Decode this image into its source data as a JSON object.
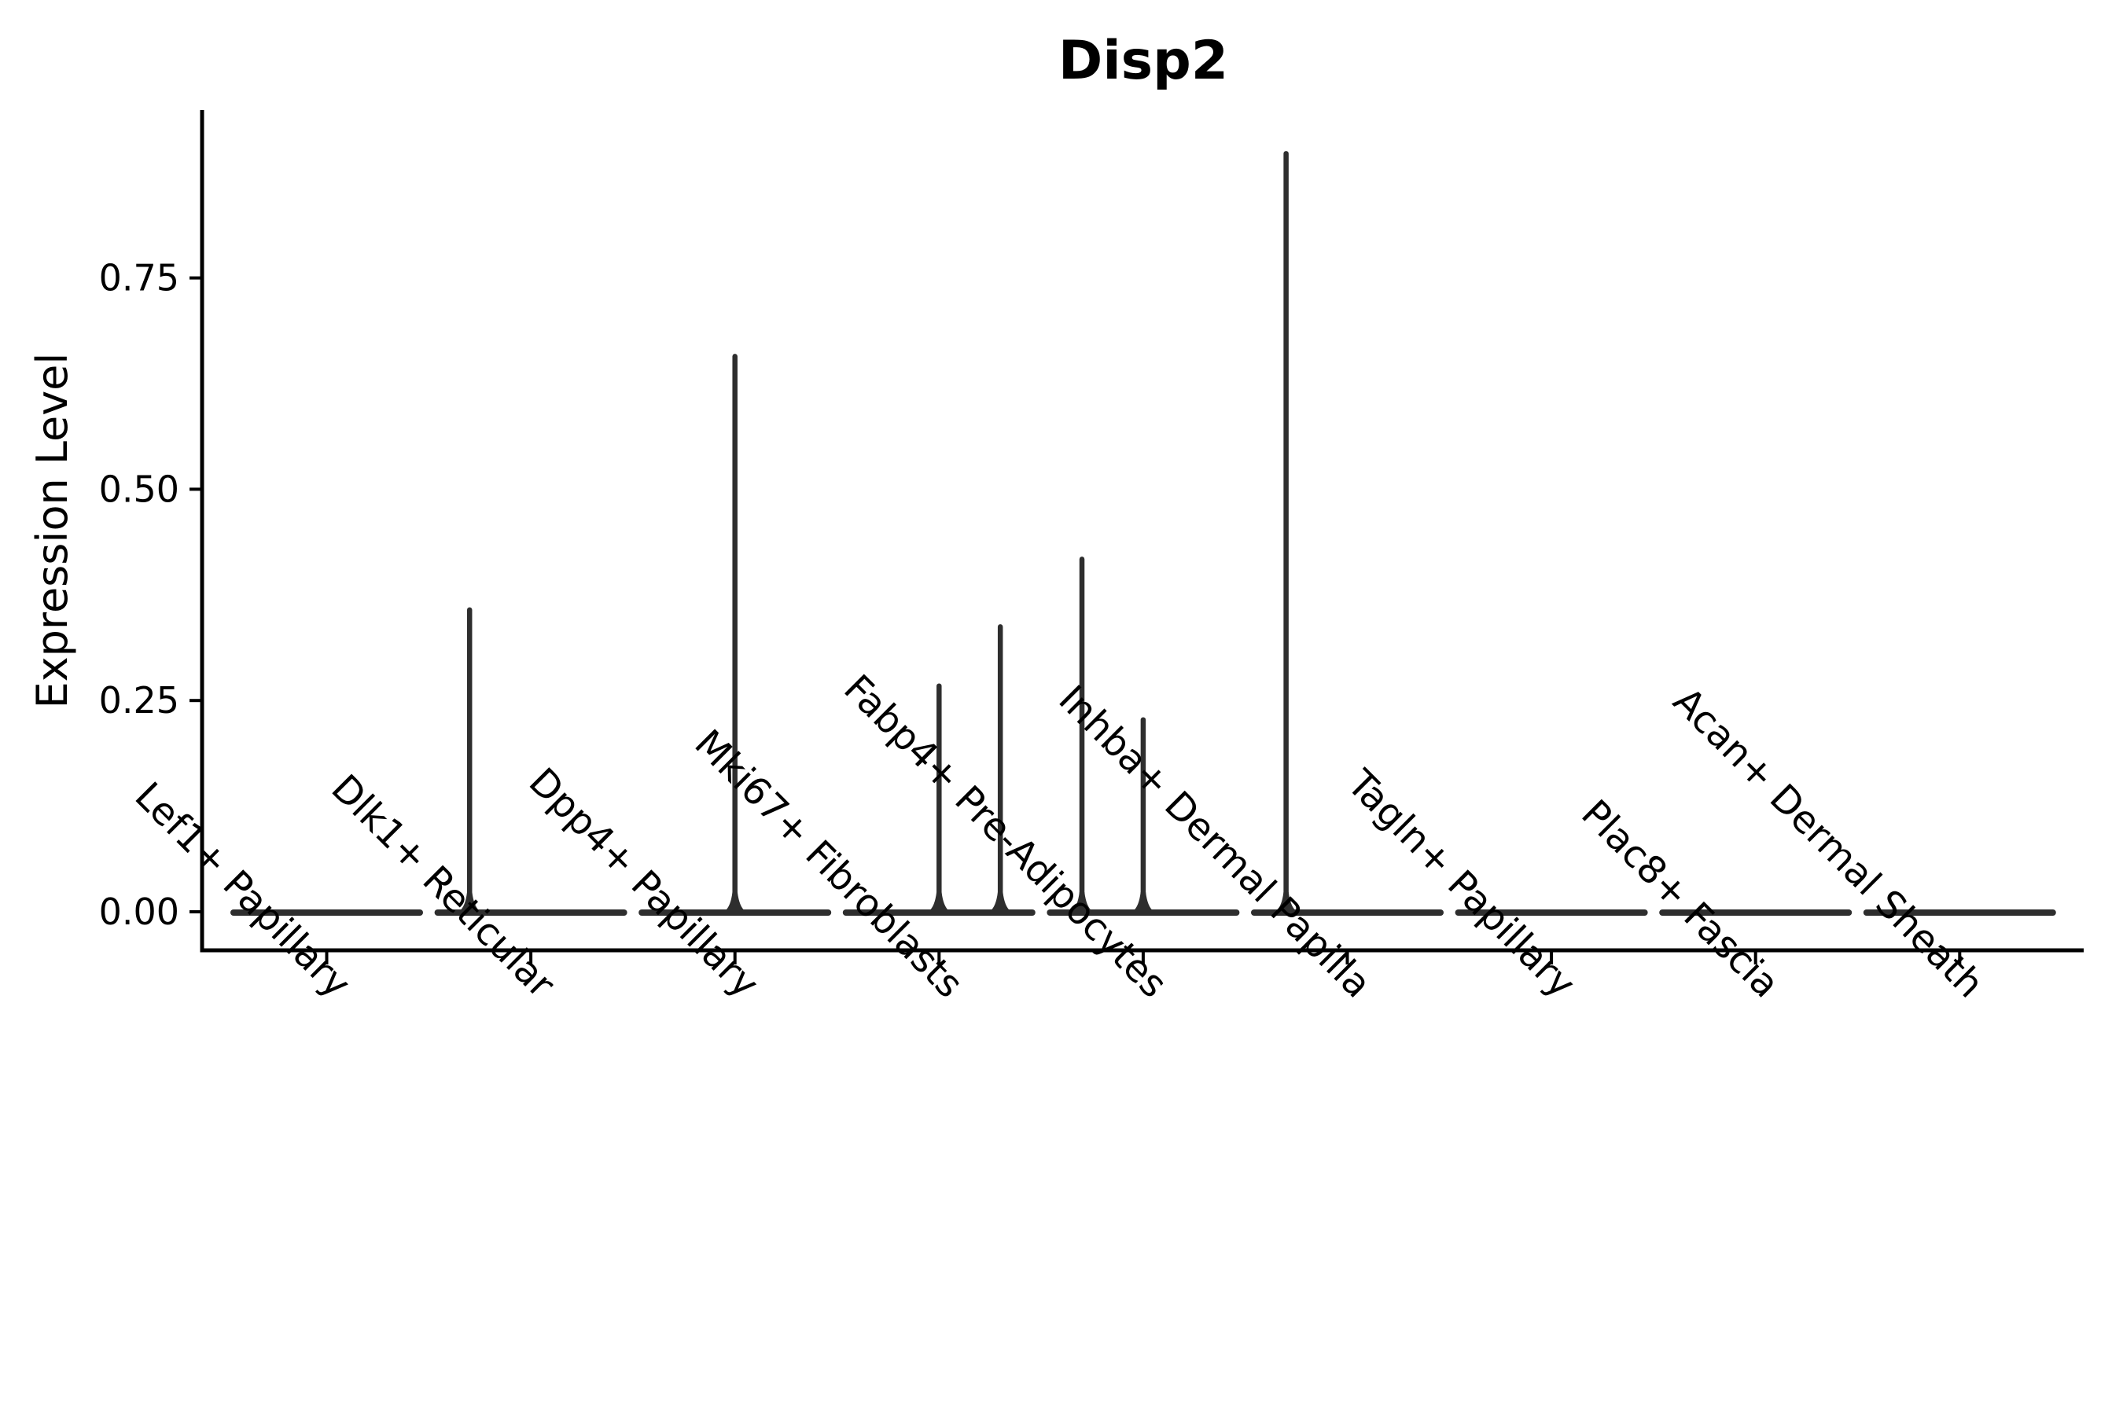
{
  "style": {
    "background": "#ffffff",
    "violin_line_color": "#2e2e2e",
    "axis_color": "#000000",
    "text_color": "#000000"
  },
  "chart_data": {
    "type": "violin",
    "title": "Disp2",
    "xlabel": "",
    "ylabel": "Expression Level",
    "legend": null,
    "grid": false,
    "ylim": [
      -0.05,
      0.95
    ],
    "yticks": [
      {
        "label": "0.00",
        "value": 0.0
      },
      {
        "label": "0.25",
        "value": 0.25
      },
      {
        "label": "0.50",
        "value": 0.5
      },
      {
        "label": "0.75",
        "value": 0.75
      }
    ],
    "categories": [
      "Lef1+ Papillary",
      "Dlk1+ Reticular",
      "Dpp4+ Papillary",
      "Mki67+ Fibroblasts",
      "Fabp4+ Pre-Adipocytes",
      "Inhba+ Dermal Papilla",
      "Tagln+ Papillary",
      "Plac8+ Fascia",
      "Acan+ Dermal Sheath"
    ],
    "violins": [
      {
        "category": "Lef1+ Papillary",
        "base_value": 0,
        "spikes": []
      },
      {
        "category": "Dlk1+ Reticular",
        "base_value": 0,
        "spikes": [
          {
            "offset": -0.3,
            "max": 0.36
          }
        ]
      },
      {
        "category": "Dpp4+ Papillary",
        "base_value": 0,
        "spikes": [
          {
            "offset": 0.0,
            "max": 0.66
          }
        ]
      },
      {
        "category": "Mki67+ Fibroblasts",
        "base_value": 0,
        "spikes": [
          {
            "offset": 0.0,
            "max": 0.27
          },
          {
            "offset": 0.3,
            "max": 0.34
          }
        ]
      },
      {
        "category": "Fabp4+ Pre-Adipocytes",
        "base_value": 0,
        "spikes": [
          {
            "offset": -0.3,
            "max": 0.42
          },
          {
            "offset": 0.0,
            "max": 0.23
          }
        ]
      },
      {
        "category": "Inhba+ Dermal Papilla",
        "base_value": 0,
        "spikes": [
          {
            "offset": -0.3,
            "max": 0.9
          }
        ]
      },
      {
        "category": "Tagln+ Papillary",
        "base_value": 0,
        "spikes": []
      },
      {
        "category": "Plac8+ Fascia",
        "base_value": 0,
        "spikes": []
      },
      {
        "category": "Acan+ Dermal Sheath",
        "base_value": 0,
        "spikes": []
      }
    ]
  }
}
